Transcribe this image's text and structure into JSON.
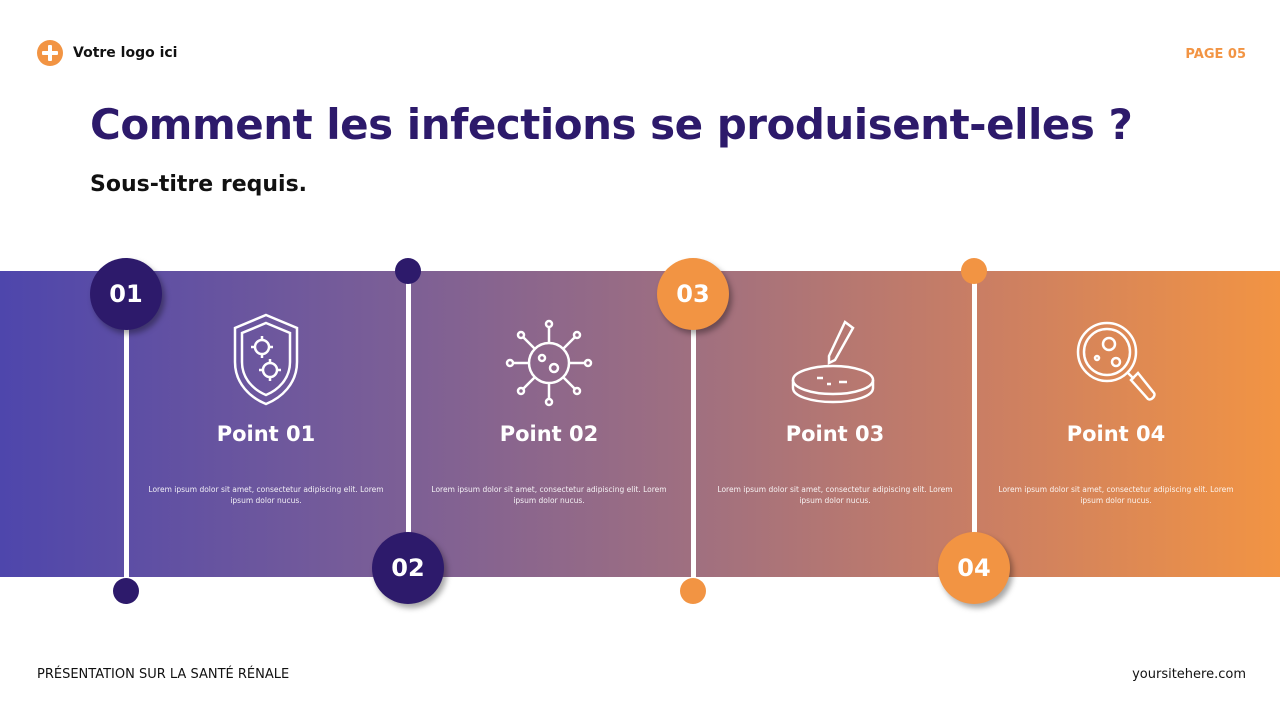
{
  "header": {
    "logo_text": "Votre logo ici",
    "page": "PAGE 05"
  },
  "title": "Comment les infections se produisent-elles ?",
  "subtitle": "Sous-titre requis.",
  "colors": {
    "dark": "#2d1a6b",
    "orange": "#f29443"
  },
  "steps": [
    {
      "num": "01",
      "title": "Point 01",
      "icon": "shield-virus-icon",
      "text": "Lorem ipsum dolor sit amet, consectetur adipiscing elit. Lorem ipsum dolor nucus."
    },
    {
      "num": "02",
      "title": "Point 02",
      "icon": "virus-icon",
      "text": "Lorem ipsum dolor sit amet, consectetur adipiscing elit. Lorem ipsum dolor nucus."
    },
    {
      "num": "03",
      "title": "Point 03",
      "icon": "petri-dish-pipette-icon",
      "text": "Lorem ipsum dolor sit amet, consectetur adipiscing elit. Lorem ipsum dolor nucus."
    },
    {
      "num": "04",
      "title": "Point 04",
      "icon": "magnifier-bacteria-icon",
      "text": "Lorem ipsum dolor sit amet, consectetur adipiscing elit. Lorem ipsum dolor nucus."
    }
  ],
  "footer": {
    "left": "PRÉSENTATION SUR LA SANTÉ RÉNALE",
    "right": "yoursitehere.com"
  }
}
